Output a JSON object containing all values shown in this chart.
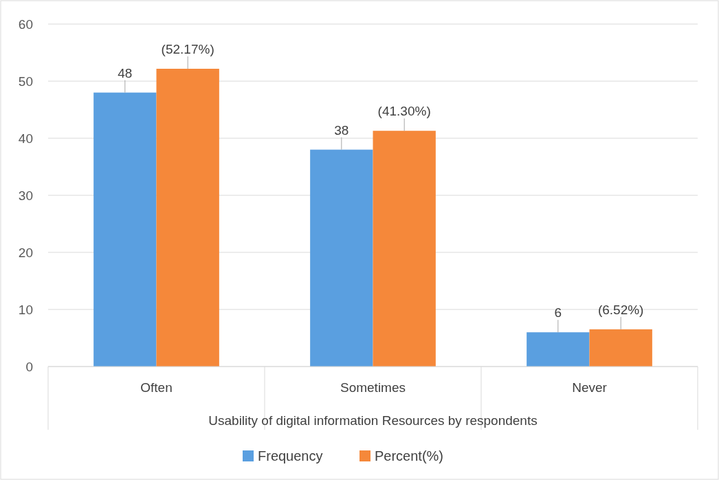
{
  "chart_data": {
    "type": "bar",
    "xlabel": "Usability of  digital information Resources by respondents",
    "categories": [
      "Often",
      "Sometimes",
      "Never"
    ],
    "series": [
      {
        "name": "Frequency",
        "color": "#5a9fe0",
        "values": [
          48,
          38,
          6
        ],
        "value_labels": [
          "48",
          "38",
          "6"
        ]
      },
      {
        "name": "Percent(%)",
        "color": "#f5883a",
        "values": [
          52.17,
          41.3,
          6.52
        ],
        "value_labels": [
          "(52.17%)",
          "(41.30%)",
          "(6.52%)"
        ]
      }
    ],
    "ylim": [
      0,
      60
    ],
    "yticks": [
      0,
      10,
      20,
      30,
      40,
      50,
      60
    ],
    "grid": "y",
    "legend": "bottom"
  }
}
